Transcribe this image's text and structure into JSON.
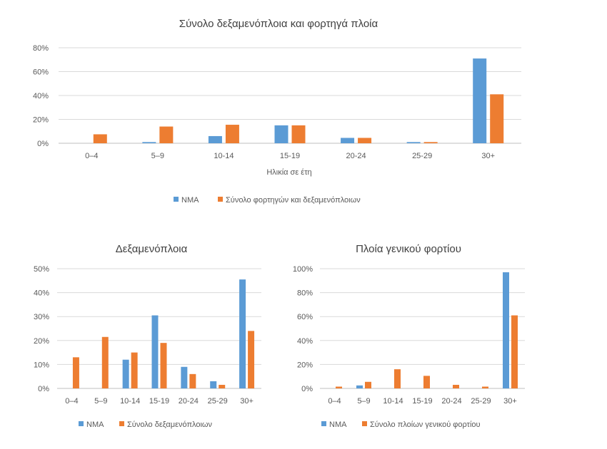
{
  "chart_data": [
    {
      "type": "bar",
      "title": "Σύνολο δεξαμενόπλοια και φορτηγά πλοία",
      "xlabel": "Ηλικία σε έτη",
      "ylabel": "",
      "categories": [
        "0–4",
        "5–9",
        "10-14",
        "15-19",
        "20-24",
        "25-29",
        "30+"
      ],
      "yticks": [
        "0%",
        "20%",
        "40%",
        "60%",
        "80%"
      ],
      "ylim": [
        0,
        80
      ],
      "series": [
        {
          "name": "NMA",
          "color": "#5B9BD5",
          "values": [
            0,
            1,
            6,
            15,
            4.5,
            1,
            71
          ]
        },
        {
          "name": "Σύνολο φορτηγών και δεξαμενόπλοιων",
          "color": "#ED7D31",
          "values": [
            7.5,
            14,
            15.5,
            15,
            4.5,
            1,
            41
          ]
        }
      ],
      "legend": "bottom"
    },
    {
      "type": "bar",
      "title": "Δεξαμενόπλοια",
      "xlabel": "",
      "ylabel": "",
      "categories": [
        "0–4",
        "5–9",
        "10-14",
        "15-19",
        "20-24",
        "25-29",
        "30+"
      ],
      "yticks": [
        "0%",
        "10%",
        "20%",
        "30%",
        "40%",
        "50%"
      ],
      "ylim": [
        0,
        50
      ],
      "series": [
        {
          "name": "NMA",
          "color": "#5B9BD5",
          "values": [
            0,
            0,
            12,
            30.5,
            9,
            3,
            45.5
          ]
        },
        {
          "name": "Σύνολο δεξαμενόπλοιων",
          "color": "#ED7D31",
          "values": [
            13,
            21.5,
            15,
            19,
            6,
            1.5,
            24
          ]
        }
      ],
      "legend": "bottom"
    },
    {
      "type": "bar",
      "title": "Πλοία γενικού φορτίου",
      "xlabel": "",
      "ylabel": "",
      "categories": [
        "0–4",
        "5–9",
        "10-14",
        "15-19",
        "20-24",
        "25-29",
        "30+"
      ],
      "yticks": [
        "0%",
        "20%",
        "40%",
        "60%",
        "80%",
        "100%"
      ],
      "ylim": [
        0,
        100
      ],
      "series": [
        {
          "name": "NMA",
          "color": "#5B9BD5",
          "values": [
            0,
            2.5,
            0,
            0,
            0,
            0,
            97
          ]
        },
        {
          "name": "Σύνολο πλοίων γενικού φορτίου",
          "color": "#ED7D31",
          "values": [
            1.5,
            5.5,
            16,
            10.5,
            3,
            1.5,
            61
          ]
        }
      ],
      "legend": "bottom"
    }
  ]
}
